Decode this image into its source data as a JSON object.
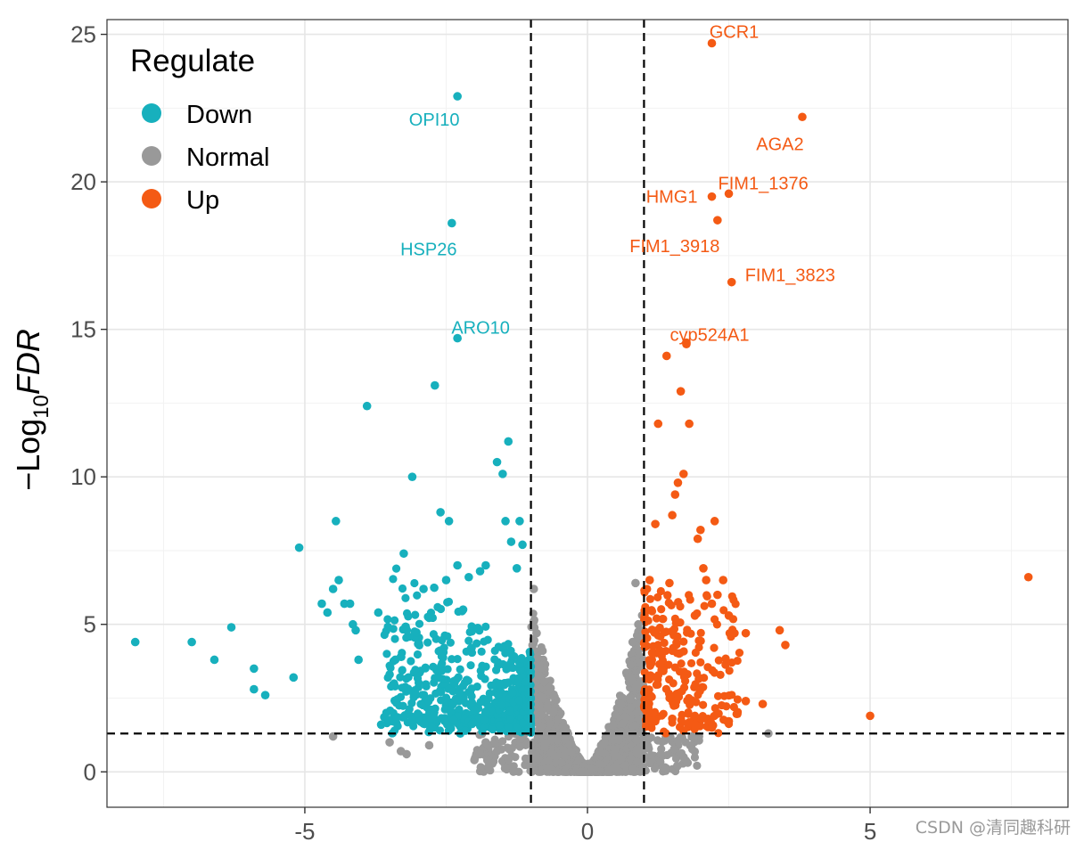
{
  "chart_data": {
    "type": "scatter",
    "title": "",
    "xlabel": "",
    "ylabel": "-Log10 FDR",
    "ylabel_parts": {
      "prefix": "−Log",
      "sub": "10",
      "italic": "FDR"
    },
    "xlim": [
      -8.5,
      8.5
    ],
    "ylim": [
      -1.2,
      25.5
    ],
    "xticks": [
      -5,
      0,
      5
    ],
    "xtick_labels": [
      "-5",
      "0",
      "5"
    ],
    "yticks": [
      0,
      5,
      10,
      15,
      20,
      25
    ],
    "ytick_labels": [
      "0",
      "5",
      "10",
      "15",
      "20",
      "25"
    ],
    "grid": true,
    "thresholds": {
      "x": [
        -1,
        1
      ],
      "y": 1.3
    },
    "legend": {
      "title": "Regulate",
      "position": "top-left",
      "entries": [
        {
          "label": "Down",
          "color": "#17B0BD"
        },
        {
          "label": "Normal",
          "color": "#999999"
        },
        {
          "label": "Up",
          "color": "#F45A14"
        }
      ]
    },
    "series": [
      {
        "name": "Down",
        "color": "#17B0BD",
        "points": [
          [
            -8.0,
            4.4
          ],
          [
            -7.0,
            4.4
          ],
          [
            -6.6,
            3.8
          ],
          [
            -6.3,
            4.9
          ],
          [
            -5.9,
            3.5
          ],
          [
            -5.9,
            2.8
          ],
          [
            -5.7,
            2.6
          ],
          [
            -5.2,
            3.2
          ],
          [
            -5.1,
            7.6
          ],
          [
            -4.7,
            5.7
          ],
          [
            -4.6,
            5.4
          ],
          [
            -4.5,
            6.2
          ],
          [
            -4.45,
            8.5
          ],
          [
            -4.4,
            6.5
          ],
          [
            -4.3,
            5.7
          ],
          [
            -4.2,
            5.7
          ],
          [
            -4.15,
            5.0
          ],
          [
            -4.1,
            4.8
          ],
          [
            -4.05,
            3.8
          ],
          [
            -3.9,
            12.4
          ],
          [
            -3.7,
            5.4
          ],
          [
            -3.65,
            1.6
          ],
          [
            -3.5,
            3.3
          ],
          [
            -3.4,
            3.8
          ],
          [
            -3.3,
            3.9
          ],
          [
            -3.25,
            7.4
          ],
          [
            -3.2,
            4.8
          ],
          [
            -3.1,
            10.0
          ],
          [
            -2.9,
            6.2
          ],
          [
            -2.7,
            13.1
          ],
          [
            -2.6,
            8.8
          ],
          [
            -2.5,
            6.5
          ],
          [
            -2.45,
            8.5
          ],
          [
            -2.3,
            7.0
          ],
          [
            -2.25,
            1.3
          ],
          [
            -2.2,
            5.5
          ],
          [
            -2.1,
            6.6
          ],
          [
            -2.05,
            4.2
          ],
          [
            -2.0,
            2.1
          ],
          [
            -1.9,
            6.8
          ],
          [
            -1.8,
            7.0
          ],
          [
            -1.6,
            10.5
          ],
          [
            -1.5,
            10.1
          ],
          [
            -1.4,
            11.2
          ],
          [
            -1.45,
            8.5
          ],
          [
            -1.35,
            7.8
          ],
          [
            -1.25,
            6.9
          ],
          [
            -1.2,
            8.5
          ],
          [
            -1.15,
            7.7
          ]
        ]
      },
      {
        "name": "Up",
        "color": "#F45A14",
        "points": [
          [
            1.1,
            6.5
          ],
          [
            1.2,
            8.4
          ],
          [
            1.25,
            11.8
          ],
          [
            1.4,
            14.1
          ],
          [
            1.45,
            6.4
          ],
          [
            1.5,
            8.7
          ],
          [
            1.55,
            9.4
          ],
          [
            1.6,
            9.8
          ],
          [
            1.65,
            12.9
          ],
          [
            1.7,
            10.1
          ],
          [
            1.75,
            14.5
          ],
          [
            1.8,
            11.8
          ],
          [
            1.9,
            5.3
          ],
          [
            1.95,
            7.9
          ],
          [
            2.0,
            8.2
          ],
          [
            2.05,
            6.9
          ],
          [
            2.1,
            6.5
          ],
          [
            2.2,
            5.7
          ],
          [
            2.25,
            8.5
          ],
          [
            2.3,
            6.0
          ],
          [
            2.4,
            6.5
          ],
          [
            2.5,
            5.3
          ],
          [
            2.6,
            4.7
          ],
          [
            2.8,
            4.7
          ],
          [
            2.8,
            2.4
          ],
          [
            3.1,
            2.3
          ],
          [
            3.4,
            4.8
          ],
          [
            3.5,
            4.3
          ],
          [
            5.0,
            1.9
          ],
          [
            7.8,
            6.6
          ],
          [
            1.5,
            1.8
          ],
          [
            1.7,
            1.4
          ],
          [
            1.9,
            1.6
          ],
          [
            2.2,
            1.5
          ]
        ]
      },
      {
        "name": "Normal",
        "color": "#999999",
        "points": [
          [
            -4.5,
            1.2
          ],
          [
            -3.5,
            1.0
          ],
          [
            -3.3,
            0.7
          ],
          [
            -3.2,
            0.6
          ],
          [
            -2.8,
            0.9
          ],
          [
            -2.0,
            0.4
          ],
          [
            -1.9,
            0.6
          ],
          [
            -1.8,
            1.0
          ],
          [
            -1.6,
            0.7
          ],
          [
            -1.4,
            0.4
          ],
          [
            -0.95,
            6.2
          ],
          [
            -0.9,
            4.7
          ],
          [
            -0.95,
            5.1
          ],
          [
            -0.85,
            3.6
          ],
          [
            -0.8,
            2.5
          ],
          [
            0.85,
            6.4
          ],
          [
            0.9,
            5.0
          ],
          [
            0.8,
            4.4
          ],
          [
            0.75,
            3.2
          ],
          [
            1.0,
            0.5
          ],
          [
            1.1,
            0.3
          ],
          [
            1.3,
            0.6
          ],
          [
            1.7,
            0.5
          ],
          [
            3.2,
            1.3
          ]
        ]
      }
    ],
    "annotations": [
      {
        "label": "GCR1",
        "x": 2.2,
        "y": 24.7,
        "color": "#F45A14"
      },
      {
        "label": "OPI10",
        "x": -2.3,
        "y": 22.9,
        "color": "#17B0BD"
      },
      {
        "label": "AGA2",
        "x": 3.8,
        "y": 22.2,
        "color": "#F45A14"
      },
      {
        "label": "HMG1",
        "x": 2.2,
        "y": 19.5,
        "color": "#F45A14"
      },
      {
        "label": "FIM1_1376",
        "x": 2.5,
        "y": 19.6,
        "color": "#F45A14"
      },
      {
        "label": "HSP26",
        "x": -2.4,
        "y": 18.6,
        "color": "#17B0BD"
      },
      {
        "label": "FIM1_3918",
        "x": 2.3,
        "y": 18.7,
        "color": "#F45A14"
      },
      {
        "label": "FIM1_3823",
        "x": 2.55,
        "y": 16.6,
        "color": "#F45A14"
      },
      {
        "label": "ARO10",
        "x": -2.3,
        "y": 14.7,
        "color": "#17B0BD"
      },
      {
        "label": "cyp524A1",
        "x": 1.75,
        "y": 14.55,
        "color": "#F45A14"
      }
    ]
  },
  "watermark": "CSDN @清同趣科研"
}
